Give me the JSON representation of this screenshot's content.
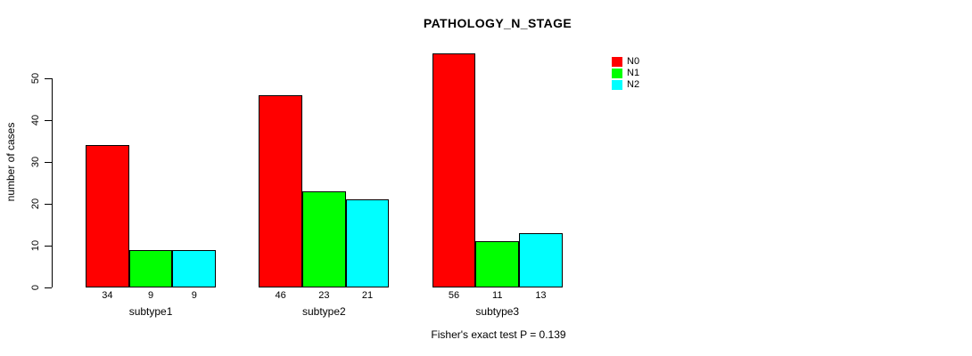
{
  "chart_data": {
    "type": "bar",
    "title": "PATHOLOGY_N_STAGE",
    "categories": [
      "subtype1",
      "subtype2",
      "subtype3"
    ],
    "series": [
      {
        "name": "N0",
        "color": "#FF0000",
        "values": [
          34,
          46,
          56
        ]
      },
      {
        "name": "N1",
        "color": "#00FF00",
        "values": [
          9,
          23,
          11
        ]
      },
      {
        "name": "N2",
        "color": "#00FFFF",
        "values": [
          9,
          21,
          13
        ]
      }
    ],
    "xlabel": "",
    "ylabel": "number of cases",
    "yticks": [
      0,
      10,
      20,
      30,
      40,
      50
    ],
    "ylim": [
      0,
      56
    ],
    "grid": false,
    "legend_position": "top-right",
    "show_values_under_bars": true,
    "annotation": "Fisher's exact test P = 0.139"
  }
}
